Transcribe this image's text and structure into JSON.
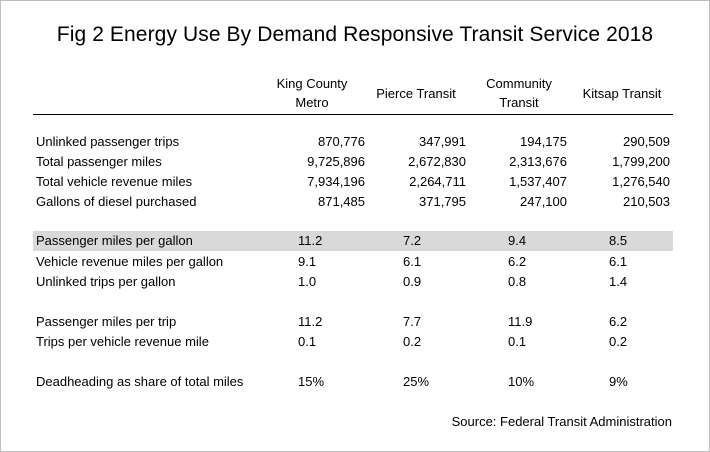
{
  "title": "Fig 2 Energy Use By Demand Responsive Transit Service 2018",
  "columns": [
    [
      "King County",
      "Metro"
    ],
    [
      "Pierce Transit"
    ],
    [
      "Community",
      "Transit"
    ],
    [
      "Kitsap Transit"
    ]
  ],
  "rows": [
    {
      "label": "Unlinked passenger trips",
      "values": [
        "870,776",
        "347,991",
        "194,175",
        "290,509"
      ]
    },
    {
      "label": "Total passenger miles",
      "values": [
        "9,725,896",
        "2,672,830",
        "2,313,676",
        "1,799,200"
      ]
    },
    {
      "label": "Total vehicle revenue miles",
      "values": [
        "7,934,196",
        "2,264,711",
        "1,537,407",
        "1,276,540"
      ]
    },
    {
      "label": "Gallons of diesel purchased",
      "values": [
        "871,485",
        "371,795",
        "247,100",
        "210,503"
      ]
    },
    {
      "label": "Passenger miles per gallon",
      "values": [
        "11.2",
        "7.2",
        "9.4",
        "8.5"
      ]
    },
    {
      "label": "Vehicle revenue miles per gallon",
      "values": [
        "9.1",
        "6.1",
        "6.2",
        "6.1"
      ]
    },
    {
      "label": "Unlinked trips per gallon",
      "values": [
        "1.0",
        "0.9",
        "0.8",
        "1.4"
      ]
    },
    {
      "label": "Passenger miles per trip",
      "values": [
        "11.2",
        "7.7",
        "11.9",
        "6.2"
      ]
    },
    {
      "label": "Trips per vehicle revenue mile",
      "values": [
        "0.1",
        "0.2",
        "0.1",
        "0.2"
      ]
    },
    {
      "label": "Deadheading as share of total miles",
      "values": [
        "15%",
        "25%",
        "10%",
        "9%"
      ]
    }
  ],
  "highlight_color": "#d9d9d9",
  "source": "Source: Federal Transit Administration"
}
